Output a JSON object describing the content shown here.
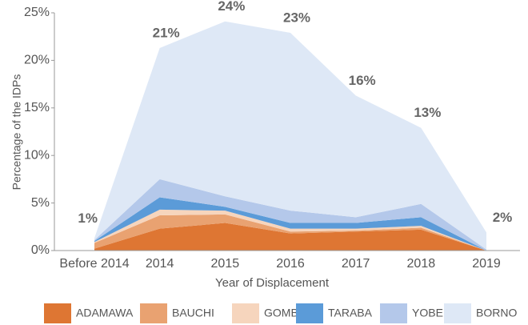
{
  "chart_data": {
    "type": "stacked_area",
    "x_label": "Year of Displacement",
    "y_label": "Percentage of the IDPs",
    "categories": [
      "Before 2014",
      "2014",
      "2015",
      "2016",
      "2017",
      "2018",
      "2019"
    ],
    "series": [
      {
        "name": "ADAMAWA",
        "color": "#de7633",
        "values": [
          0.2,
          2.3,
          2.9,
          1.8,
          2.0,
          2.2,
          0
        ]
      },
      {
        "name": "BAUCHI",
        "color": "#e9a271",
        "values": [
          0.6,
          1.4,
          0.9,
          0.2,
          0.1,
          0.2,
          0
        ]
      },
      {
        "name": "GOMBE",
        "color": "#f6d5bd",
        "values": [
          0.1,
          0.6,
          0.4,
          0.3,
          0.2,
          0.2,
          0
        ]
      },
      {
        "name": "TARABA",
        "color": "#5b9bd8",
        "values": [
          0.1,
          1.3,
          0.4,
          0.6,
          0.6,
          0.9,
          0
        ]
      },
      {
        "name": "YOBE",
        "color": "#b4c8ea",
        "values": [
          0.1,
          1.9,
          1.1,
          1.3,
          0.6,
          1.4,
          0.1
        ]
      },
      {
        "name": "BORNO",
        "color": "#dee8f6",
        "values": [
          0.2,
          13.8,
          18.4,
          18.7,
          12.8,
          8.0,
          1.8
        ]
      }
    ],
    "annotations": [
      "1%",
      "21%",
      "24%",
      "23%",
      "16%",
      "13%",
      "2%"
    ],
    "ylim": [
      0,
      25
    ],
    "yticks": [
      {
        "value": 0,
        "label": "0%"
      },
      {
        "value": 5,
        "label": "5%"
      },
      {
        "value": 10,
        "label": "10%"
      },
      {
        "value": 15,
        "label": "15%"
      },
      {
        "value": 20,
        "label": "20%"
      },
      {
        "value": 25,
        "label": "25%"
      }
    ],
    "legend": "bottom"
  }
}
